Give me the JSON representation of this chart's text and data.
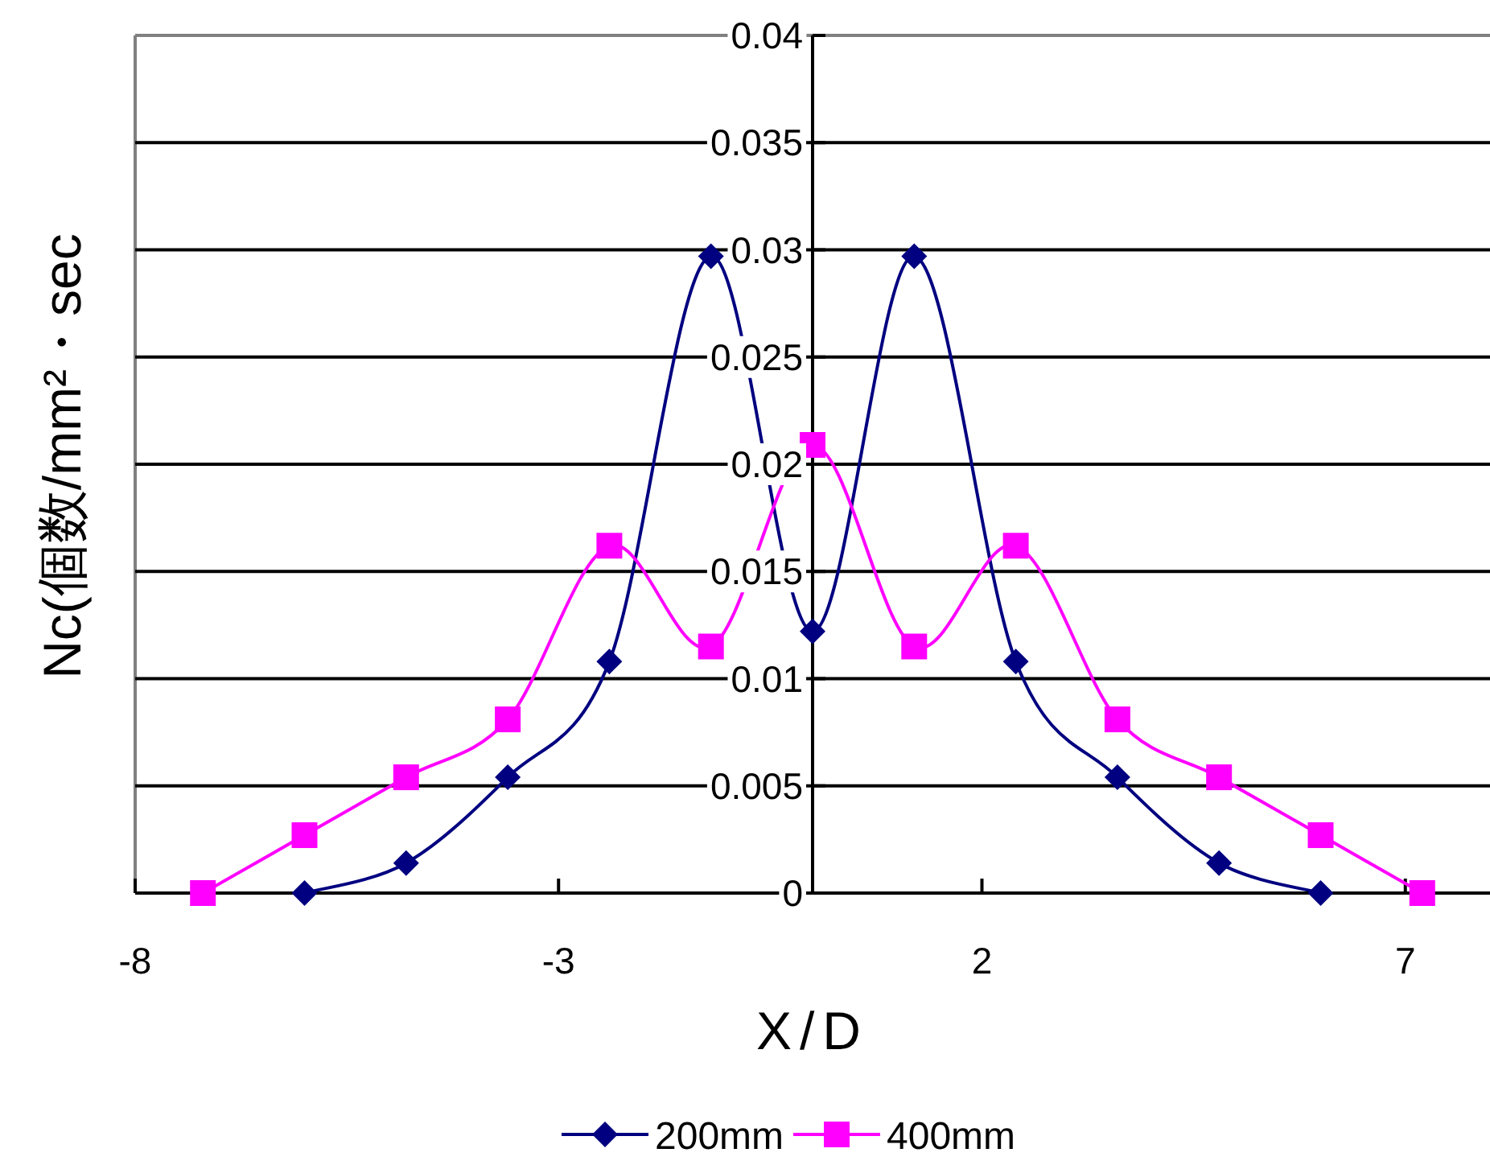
{
  "chart_data": {
    "type": "line",
    "xlabel": "X/D",
    "ylabel": "Nc(個数/mm²・sec",
    "xlim": [
      -8,
      8
    ],
    "xticks": [
      -8,
      -3,
      2,
      7
    ],
    "ylim": [
      0,
      0.04
    ],
    "yticks": [
      0,
      0.005,
      0.01,
      0.015,
      0.02,
      0.025,
      0.03,
      0.035,
      0.04
    ],
    "grid": "y",
    "legend": "bottom",
    "series": [
      {
        "name": "200mm",
        "color": "#000080",
        "marker": "diamond",
        "x": [
          -6,
          -4.8,
          -3.6,
          -2.4,
          -1.2,
          0,
          1.2,
          2.4,
          3.6,
          4.8,
          6
        ],
        "values": [
          0,
          0.0014,
          0.0054,
          0.0108,
          0.0297,
          0.0122,
          0.0297,
          0.0108,
          0.0054,
          0.0014,
          0
        ]
      },
      {
        "name": "400mm",
        "color": "#ff00ff",
        "marker": "square",
        "x": [
          -7.2,
          -6,
          -4.8,
          -3.6,
          -2.4,
          -1.2,
          0,
          1.2,
          2.4,
          3.6,
          4.8,
          6,
          7.2
        ],
        "values": [
          0,
          0.0027,
          0.0054,
          0.0081,
          0.0162,
          0.0115,
          0.0209,
          0.0115,
          0.0162,
          0.0081,
          0.0054,
          0.0027,
          0
        ]
      }
    ]
  }
}
